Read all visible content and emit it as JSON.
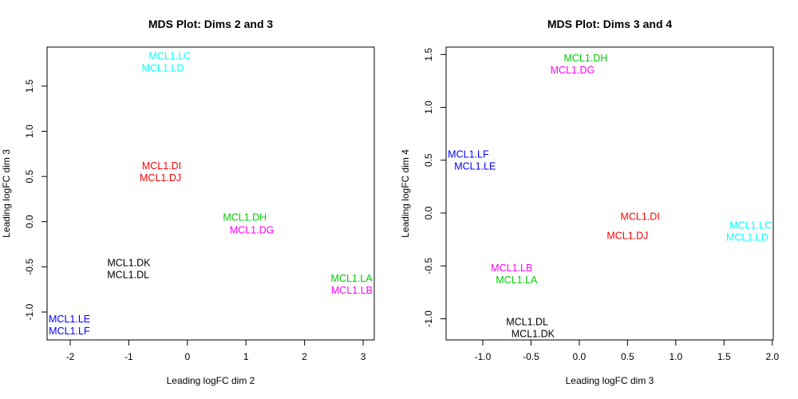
{
  "colors": {
    "cyan": "#00FFFF",
    "red": "#FF0000",
    "green": "#00CD00",
    "magenta": "#FF00FF",
    "black": "#000000",
    "blue": "#0000FF"
  },
  "chart_data": [
    {
      "type": "scatter",
      "title": "MDS Plot: Dims 2 and 3",
      "xlabel": "Leading logFC dim 2",
      "ylabel": "Leading logFC dim 3",
      "xlim": [
        -2.395,
        3.19
      ],
      "ylim": [
        -1.309,
        1.932
      ],
      "xticks": [
        -2,
        -1,
        0,
        1,
        2,
        3
      ],
      "xtick_labels": [
        "-2",
        "-1",
        "0",
        "1",
        "2",
        "3"
      ],
      "yticks": [
        -1.0,
        -0.5,
        0.0,
        0.5,
        1.0,
        1.5
      ],
      "ytick_labels": [
        "-1.0",
        "-0.5",
        "0.0",
        "0.5",
        "1.0",
        "1.5"
      ],
      "grid": false,
      "points": [
        {
          "label": "MCL1.LC",
          "x": -0.3,
          "y": 1.81,
          "color": "cyan"
        },
        {
          "label": "MCL1.LD",
          "x": -0.42,
          "y": 1.73,
          "color": "cyan"
        },
        {
          "label": "MCL1.DI",
          "x": -0.44,
          "y": 0.62,
          "color": "red"
        },
        {
          "label": "MCL1.DJ",
          "x": -0.46,
          "y": 0.49,
          "color": "red"
        },
        {
          "label": "MCL1.DH",
          "x": 0.98,
          "y": 0.05,
          "color": "green"
        },
        {
          "label": "MCL1.DG",
          "x": 1.1,
          "y": -0.09,
          "color": "magenta"
        },
        {
          "label": "MCL1.DK",
          "x": -1.0,
          "y": -0.49,
          "color": "black"
        },
        {
          "label": "MCL1.DL",
          "x": -1.01,
          "y": -0.55,
          "color": "black"
        },
        {
          "label": "MCL1.LA",
          "x": 2.94,
          "y": -0.67,
          "color": "green"
        },
        {
          "label": "MCL1.LB",
          "x": 2.83,
          "y": -0.71,
          "color": "magenta"
        },
        {
          "label": "MCL1.LE",
          "x": -2.02,
          "y": -1.09,
          "color": "blue"
        },
        {
          "label": "MCL1.LF",
          "x": -2.1,
          "y": -1.19,
          "color": "blue"
        }
      ]
    },
    {
      "type": "scatter",
      "title": "MDS Plot: Dims 3 and 4",
      "xlabel": "Leading logFC dim 3",
      "ylabel": "Leading logFC dim 4",
      "xlim": [
        -1.38,
        2.01
      ],
      "ylim": [
        -1.2,
        1.57
      ],
      "xticks": [
        -1.0,
        -0.5,
        0.0,
        0.5,
        1.0,
        1.5,
        2.0
      ],
      "xtick_labels": [
        "-1.0",
        "-0.5",
        "0.0",
        "0.5",
        "1.0",
        "1.5",
        "2.0"
      ],
      "yticks": [
        -1.0,
        -0.5,
        0.0,
        0.5,
        1.0,
        1.5
      ],
      "ytick_labels": [
        "-1.0",
        "-0.5",
        "0.0",
        "0.5",
        "1.0",
        "1.5"
      ],
      "grid": false,
      "points": [
        {
          "label": "MCL1.DH",
          "x": 0.066,
          "y": 1.46,
          "color": "green"
        },
        {
          "label": "MCL1.DG",
          "x": -0.07,
          "y": 1.36,
          "color": "magenta"
        },
        {
          "label": "MCL1.LF",
          "x": -1.17,
          "y": 0.545,
          "color": "blue"
        },
        {
          "label": "MCL1.LE",
          "x": -1.08,
          "y": 0.46,
          "color": "blue"
        },
        {
          "label": "MCL1.DI",
          "x": 0.63,
          "y": -0.03,
          "color": "red"
        },
        {
          "label": "MCL1.DJ",
          "x": 0.5,
          "y": -0.21,
          "color": "red"
        },
        {
          "label": "MCL1.LC",
          "x": 1.81,
          "y": -0.13,
          "color": "cyan"
        },
        {
          "label": "MCL1.LD",
          "x": 1.74,
          "y": -0.21,
          "color": "cyan"
        },
        {
          "label": "MCL1.LB",
          "x": -0.7,
          "y": -0.54,
          "color": "magenta"
        },
        {
          "label": "MCL1.LA",
          "x": -0.65,
          "y": -0.61,
          "color": "green"
        },
        {
          "label": "MCL1.DL",
          "x": -0.54,
          "y": -1.07,
          "color": "black"
        },
        {
          "label": "MCL1.DK",
          "x": -0.48,
          "y": -1.11,
          "color": "black"
        }
      ]
    }
  ]
}
